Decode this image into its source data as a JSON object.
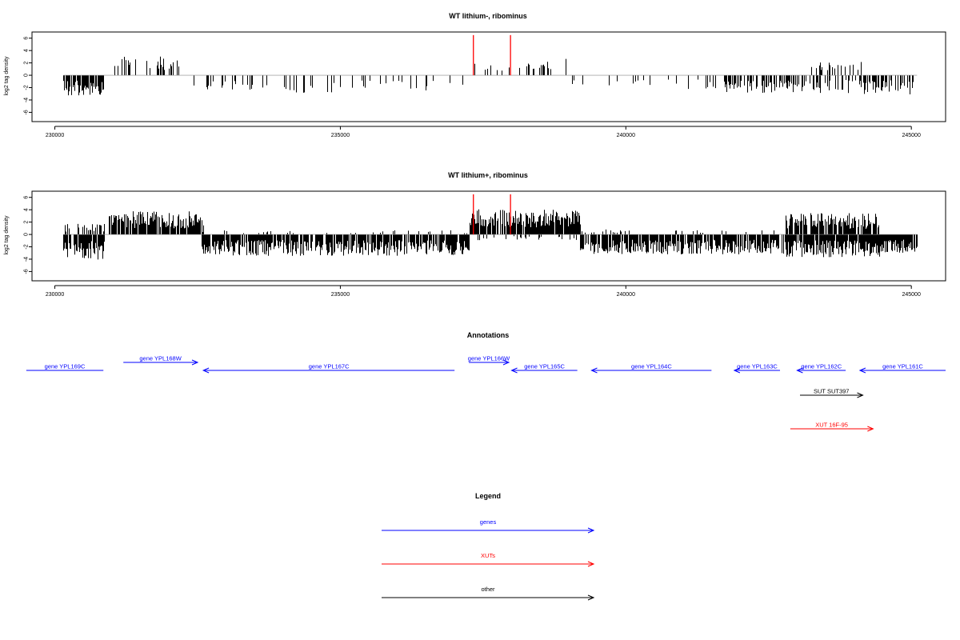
{
  "chart_data": [
    {
      "type": "bar",
      "title": "WT lithium-, ribominus",
      "ylabel": "log2 tag density",
      "xlim": [
        229600,
        245600
      ],
      "ylim": [
        -7.5,
        7
      ],
      "xticks": [
        230000,
        235000,
        240000,
        245000
      ],
      "yticks": [
        6,
        4,
        2,
        0,
        -2,
        -4,
        -6
      ],
      "bar_segments": [
        {
          "start": 230150,
          "end": 230870,
          "sign": -1,
          "mag": 2.9,
          "density": 0.85
        },
        {
          "start": 231050,
          "end": 232250,
          "sign": 1,
          "mag": 2.8,
          "density": 0.3
        },
        {
          "start": 232300,
          "end": 233550,
          "sign": -1,
          "mag": 2.2,
          "density": 0.2
        },
        {
          "start": 233550,
          "end": 235000,
          "sign": -1,
          "mag": 2.5,
          "density": 0.1
        },
        {
          "start": 235000,
          "end": 236600,
          "sign": -1,
          "mag": 2.4,
          "density": 0.17
        },
        {
          "start": 236600,
          "end": 237250,
          "sign": -1,
          "mag": 1.6,
          "density": 0.07
        },
        {
          "start": 237300,
          "end": 238650,
          "sign": 1,
          "mag": 2.0,
          "density": 0.2
        },
        {
          "start": 238600,
          "end": 238950,
          "sign": 1,
          "mag": 2.5,
          "density": 0.2
        },
        {
          "start": 239050,
          "end": 240300,
          "sign": -1,
          "mag": 1.8,
          "density": 0.05
        },
        {
          "start": 240300,
          "end": 241600,
          "sign": -1,
          "mag": 2.0,
          "density": 0.1
        },
        {
          "start": 241700,
          "end": 242700,
          "sign": -1,
          "mag": 2.5,
          "density": 0.45
        },
        {
          "start": 242700,
          "end": 244100,
          "sign": -1,
          "mag": 2.5,
          "density": 0.4
        },
        {
          "start": 243250,
          "end": 244150,
          "sign": 1,
          "mag": 2.0,
          "density": 0.3
        },
        {
          "start": 244100,
          "end": 245100,
          "sign": -1,
          "mag": 2.7,
          "density": 0.5
        }
      ],
      "highlights": [
        {
          "x": 237330,
          "value": 6.5,
          "color": "#ff0000"
        },
        {
          "x": 237980,
          "value": 6.5,
          "color": "#ff0000"
        }
      ]
    },
    {
      "type": "bar",
      "title": "WT lithium+, ribominus",
      "ylabel": "log2 tag density",
      "xlim": [
        229600,
        245600
      ],
      "ylim": [
        -7.5,
        7
      ],
      "xticks": [
        230000,
        235000,
        240000,
        245000
      ],
      "yticks": [
        6,
        4,
        2,
        0,
        -2,
        -4,
        -6
      ],
      "bar_segments": [
        {
          "start": 230150,
          "end": 230870,
          "sign": -1,
          "mag": 3.6,
          "density": 0.95
        },
        {
          "start": 230150,
          "end": 230870,
          "sign": 1,
          "mag": 1.5,
          "density": 0.3
        },
        {
          "start": 230950,
          "end": 232600,
          "sign": 1,
          "mag": 3.3,
          "density": 0.85
        },
        {
          "start": 232550,
          "end": 237250,
          "sign": -1,
          "mag": 3.0,
          "density": 0.85
        },
        {
          "start": 232550,
          "end": 237250,
          "sign": 1,
          "mag": 0.6,
          "density": 0.1
        },
        {
          "start": 237250,
          "end": 239200,
          "sign": 1,
          "mag": 3.6,
          "density": 0.95
        },
        {
          "start": 237250,
          "end": 239200,
          "sign": -1,
          "mag": 0.8,
          "density": 0.15
        },
        {
          "start": 239200,
          "end": 242800,
          "sign": -1,
          "mag": 2.8,
          "density": 0.85
        },
        {
          "start": 239200,
          "end": 242800,
          "sign": 1,
          "mag": 0.7,
          "density": 0.1
        },
        {
          "start": 242800,
          "end": 244450,
          "sign": 1,
          "mag": 3.0,
          "density": 0.85
        },
        {
          "start": 242800,
          "end": 244450,
          "sign": -1,
          "mag": 3.2,
          "density": 0.9
        },
        {
          "start": 244450,
          "end": 245100,
          "sign": -1,
          "mag": 2.6,
          "density": 0.85
        }
      ],
      "highlights": [
        {
          "x": 237330,
          "value": 6.5,
          "color": "#ff0000"
        },
        {
          "x": 237980,
          "value": 6.5,
          "color": "#ff0000"
        }
      ]
    }
  ],
  "annotations": {
    "title": "Annotations",
    "items": [
      {
        "label": "gene YPL169C",
        "start": 229500,
        "end": 230850,
        "row": 1,
        "direction": "none",
        "color": "#0000ff"
      },
      {
        "label": "gene YPL168W",
        "start": 231200,
        "end": 232500,
        "row": 0,
        "direction": "right",
        "color": "#0000ff"
      },
      {
        "label": "gene YPL167C",
        "start": 232600,
        "end": 237000,
        "row": 1,
        "direction": "left",
        "color": "#0000ff"
      },
      {
        "label": "gene YPL166W",
        "start": 237250,
        "end": 237950,
        "row": 0,
        "direction": "right",
        "color": "#0000ff"
      },
      {
        "label": "gene YPL165C",
        "start": 238000,
        "end": 239150,
        "row": 1,
        "direction": "left",
        "color": "#0000ff"
      },
      {
        "label": "gene YPL164C",
        "start": 239400,
        "end": 241500,
        "row": 1,
        "direction": "left",
        "color": "#0000ff"
      },
      {
        "label": "gene YPL163C",
        "start": 241900,
        "end": 242700,
        "row": 1,
        "direction": "left",
        "color": "#0000ff"
      },
      {
        "label": "gene YPL162C",
        "start": 243000,
        "end": 243850,
        "row": 1,
        "direction": "left",
        "color": "#0000ff"
      },
      {
        "label": "gene YPL161C",
        "start": 244100,
        "end": 245600,
        "row": 1,
        "direction": "left",
        "color": "#0000ff"
      },
      {
        "label": "SUT SUT397",
        "start": 243050,
        "end": 244150,
        "row": 2,
        "direction": "right",
        "color": "#000000"
      },
      {
        "label": "XUT 16F-95",
        "start": 242880,
        "end": 244330,
        "row": 3,
        "direction": "right",
        "color": "#ff0000"
      }
    ]
  },
  "legend": {
    "title": "Legend",
    "items": [
      {
        "label": "genes",
        "color": "#0000ff"
      },
      {
        "label": "XUTs",
        "color": "#ff0000"
      },
      {
        "label": "other",
        "color": "#000000"
      }
    ]
  }
}
